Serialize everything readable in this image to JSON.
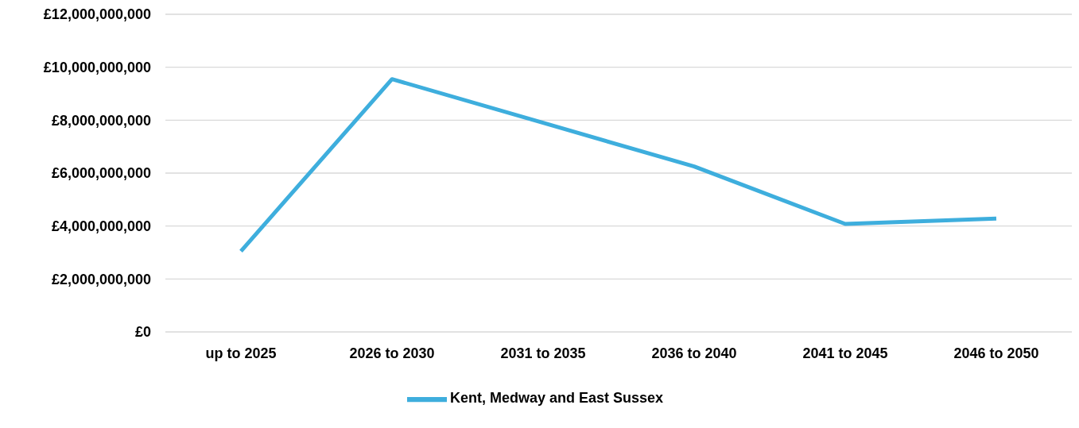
{
  "chart_data": {
    "type": "line",
    "categories": [
      "up to 2025",
      "2026 to 2030",
      "2031 to 2035",
      "2036 to 2040",
      "2041 to 2045",
      "2046 to 2050"
    ],
    "series": [
      {
        "name": "Kent, Medway and East Sussex",
        "color": "#3eaedd",
        "values": [
          3050000000,
          9550000000,
          7900000000,
          6250000000,
          4080000000,
          4280000000
        ]
      }
    ],
    "ylim": [
      0,
      12000000000
    ],
    "yticks": [
      {
        "value": 0,
        "label": "£0"
      },
      {
        "value": 2000000000,
        "label": "£2,000,000,000"
      },
      {
        "value": 4000000000,
        "label": "£4,000,000,000"
      },
      {
        "value": 6000000000,
        "label": "£6,000,000,000"
      },
      {
        "value": 8000000000,
        "label": "£8,000,000,000"
      },
      {
        "value": 10000000000,
        "label": "£10,000,000,000"
      },
      {
        "value": 12000000000,
        "label": "£12,000,000,000"
      }
    ],
    "grid": "y",
    "legend": "bottom",
    "marker": "none",
    "line_style": "solid"
  }
}
